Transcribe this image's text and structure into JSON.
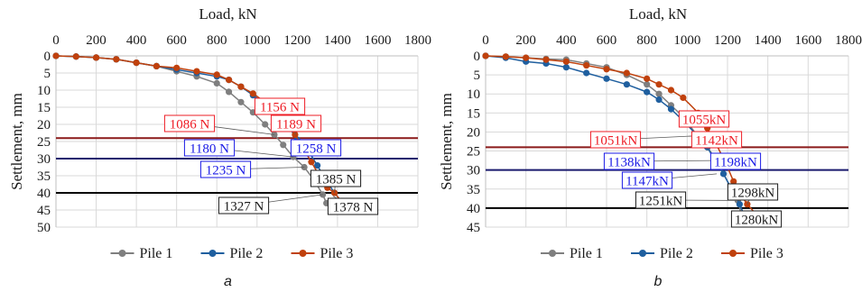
{
  "chart_data": [
    {
      "type": "scatter",
      "panel_label": "a",
      "xlabel": "Load, kN",
      "ylabel": "Settlement, mm",
      "xlim": [
        0,
        1800
      ],
      "ylim": [
        0,
        50
      ],
      "x_ticks": [
        0,
        200,
        400,
        600,
        800,
        1000,
        1200,
        1400,
        1600,
        1800
      ],
      "y_ticks": [
        0,
        5,
        10,
        15,
        20,
        25,
        30,
        35,
        40,
        45,
        50
      ],
      "x_axis_position": "top",
      "y_inverted": true,
      "grid": true,
      "legend_position": "bottom",
      "series": [
        {
          "name": "Pile 1",
          "color": "#7f7f7f",
          "points": [
            [
              0,
              0
            ],
            [
              100,
              0.2
            ],
            [
              200,
              0.5
            ],
            [
              300,
              1
            ],
            [
              400,
              2
            ],
            [
              500,
              3
            ],
            [
              600,
              4.5
            ],
            [
              700,
              6
            ],
            [
              800,
              8
            ],
            [
              860,
              10.5
            ],
            [
              920,
              13.5
            ],
            [
              980,
              16.5
            ],
            [
              1040,
              20
            ],
            [
              1086,
              23
            ],
            [
              1130,
              26
            ],
            [
              1180,
              29.5
            ],
            [
              1235,
              32.5
            ],
            [
              1280,
              36
            ],
            [
              1327,
              40.5
            ],
            [
              1345,
              43
            ]
          ]
        },
        {
          "name": "Pile 2",
          "color": "#1f5f9f",
          "points": [
            [
              0,
              0
            ],
            [
              100,
              0.2
            ],
            [
              200,
              0.5
            ],
            [
              300,
              1
            ],
            [
              400,
              2
            ],
            [
              500,
              3
            ],
            [
              600,
              4
            ],
            [
              700,
              5
            ],
            [
              800,
              6
            ],
            [
              860,
              7
            ],
            [
              920,
              9
            ],
            [
              980,
              11.5
            ],
            [
              1040,
              14
            ],
            [
              1100,
              17
            ],
            [
              1156,
              20.5
            ],
            [
              1200,
              24.5
            ],
            [
              1258,
              28
            ],
            [
              1300,
              32
            ],
            [
              1340,
              36
            ],
            [
              1385,
              40
            ],
            [
              1420,
              42.5
            ],
            [
              1430,
              44
            ]
          ]
        },
        {
          "name": "Pile 3",
          "color": "#c0410d",
          "points": [
            [
              0,
              0
            ],
            [
              100,
              0.2
            ],
            [
              200,
              0.5
            ],
            [
              300,
              1
            ],
            [
              400,
              2
            ],
            [
              500,
              3
            ],
            [
              600,
              3.5
            ],
            [
              700,
              4.5
            ],
            [
              800,
              5.5
            ],
            [
              860,
              7
            ],
            [
              920,
              9
            ],
            [
              980,
              11
            ],
            [
              1040,
              13.5
            ],
            [
              1100,
              16
            ],
            [
              1156,
              19.5
            ],
            [
              1189,
              23
            ],
            [
              1230,
              27
            ],
            [
              1270,
              31
            ],
            [
              1310,
              35
            ],
            [
              1350,
              38.5
            ],
            [
              1385,
              40
            ],
            [
              1420,
              42.5
            ],
            [
              1450,
              44
            ]
          ]
        }
      ],
      "reference_lines": [
        {
          "y": 24,
          "color": "#8b1a1a"
        },
        {
          "y": 30,
          "color": "#1a1a6e"
        },
        {
          "y": 40,
          "color": "#000000"
        }
      ],
      "annotations": [
        {
          "text": "1156 N",
          "color": "#ee1c25",
          "x": 1156,
          "y": 20.5
        },
        {
          "text": "1086 N",
          "color": "#ee1c25",
          "x": 1086,
          "y": 23
        },
        {
          "text": "1189 N",
          "color": "#ee1c25",
          "x": 1189,
          "y": 23
        },
        {
          "text": "1180 N",
          "color": "#1a1ae6",
          "x": 1180,
          "y": 29.5
        },
        {
          "text": "1258 N",
          "color": "#1a1ae6",
          "x": 1258,
          "y": 28
        },
        {
          "text": "1235 N",
          "color": "#1a1ae6",
          "x": 1235,
          "y": 32.5
        },
        {
          "text": "1385 N",
          "color": "#1a1a1a",
          "x": 1385,
          "y": 40
        },
        {
          "text": "1327 N",
          "color": "#1a1a1a",
          "x": 1327,
          "y": 40.5
        },
        {
          "text": "1378 N",
          "color": "#1a1a1a",
          "x": 1378,
          "y": 41
        }
      ]
    },
    {
      "type": "scatter",
      "panel_label": "b",
      "xlabel": "Load, kN",
      "ylabel": "Settlement, mm",
      "xlim": [
        0,
        1800
      ],
      "ylim": [
        0,
        45
      ],
      "x_ticks": [
        0,
        200,
        400,
        600,
        800,
        1000,
        1200,
        1400,
        1600,
        1800
      ],
      "y_ticks": [
        0,
        5,
        10,
        15,
        20,
        25,
        30,
        35,
        40,
        45
      ],
      "x_axis_position": "top",
      "y_inverted": true,
      "grid": true,
      "legend_position": "bottom",
      "series": [
        {
          "name": "Pile 1",
          "color": "#7f7f7f",
          "points": [
            [
              0,
              0
            ],
            [
              100,
              0.2
            ],
            [
              200,
              0.5
            ],
            [
              300,
              0.8
            ],
            [
              400,
              1
            ],
            [
              500,
              2
            ],
            [
              600,
              3
            ],
            [
              700,
              5
            ],
            [
              800,
              7.5
            ],
            [
              860,
              10
            ],
            [
              920,
              13
            ],
            [
              980,
              16
            ],
            [
              1051,
              21
            ],
            [
              1100,
              24
            ],
            [
              1147,
              27.5
            ],
            [
              1180,
              31
            ],
            [
              1220,
              35
            ],
            [
              1251,
              38
            ],
            [
              1270,
              42
            ]
          ]
        },
        {
          "name": "Pile 2",
          "color": "#1f5f9f",
          "points": [
            [
              0,
              0
            ],
            [
              100,
              0.5
            ],
            [
              200,
              1.5
            ],
            [
              300,
              2
            ],
            [
              400,
              3
            ],
            [
              500,
              4.5
            ],
            [
              600,
              6
            ],
            [
              700,
              7.5
            ],
            [
              800,
              9.5
            ],
            [
              860,
              11.5
            ],
            [
              920,
              14
            ],
            [
              980,
              17
            ],
            [
              1051,
              21
            ],
            [
              1100,
              24
            ],
            [
              1138,
              27.5
            ],
            [
              1180,
              31
            ],
            [
              1220,
              35
            ],
            [
              1260,
              39
            ],
            [
              1280,
              41.5
            ],
            [
              1300,
              42
            ]
          ]
        },
        {
          "name": "Pile 3",
          "color": "#c0410d",
          "points": [
            [
              0,
              0
            ],
            [
              100,
              0.2
            ],
            [
              200,
              0.5
            ],
            [
              300,
              1
            ],
            [
              400,
              1.5
            ],
            [
              500,
              2.5
            ],
            [
              600,
              3.5
            ],
            [
              700,
              4.5
            ],
            [
              800,
              6
            ],
            [
              860,
              7.5
            ],
            [
              920,
              9
            ],
            [
              980,
              11
            ],
            [
              1055,
              15
            ],
            [
              1100,
              19
            ],
            [
              1142,
              23
            ],
            [
              1180,
              27
            ],
            [
              1198,
              29
            ],
            [
              1230,
              33
            ],
            [
              1260,
              36
            ],
            [
              1298,
              39
            ],
            [
              1340,
              41.5
            ],
            [
              1380,
              43
            ]
          ]
        }
      ],
      "reference_lines": [
        {
          "y": 24,
          "color": "#8b1a1a"
        },
        {
          "y": 30,
          "color": "#1a1a6e"
        },
        {
          "y": 40,
          "color": "#000000"
        }
      ],
      "annotations": [
        {
          "text": "1055kN",
          "color": "#ee1c25",
          "x": 1055,
          "y": 15
        },
        {
          "text": "1051kN",
          "color": "#ee1c25",
          "x": 1051,
          "y": 21
        },
        {
          "text": "1142kN",
          "color": "#ee1c25",
          "x": 1142,
          "y": 23
        },
        {
          "text": "1138kN",
          "color": "#1a1ae6",
          "x": 1138,
          "y": 27.5
        },
        {
          "text": "1198kN",
          "color": "#1a1ae6",
          "x": 1198,
          "y": 29
        },
        {
          "text": "1147kN",
          "color": "#1a1ae6",
          "x": 1147,
          "y": 31
        },
        {
          "text": "1298kN",
          "color": "#1a1a1a",
          "x": 1298,
          "y": 39
        },
        {
          "text": "1251kN",
          "color": "#1a1a1a",
          "x": 1251,
          "y": 38
        },
        {
          "text": "1280kN",
          "color": "#1a1a1a",
          "x": 1280,
          "y": 41.5
        }
      ]
    }
  ]
}
